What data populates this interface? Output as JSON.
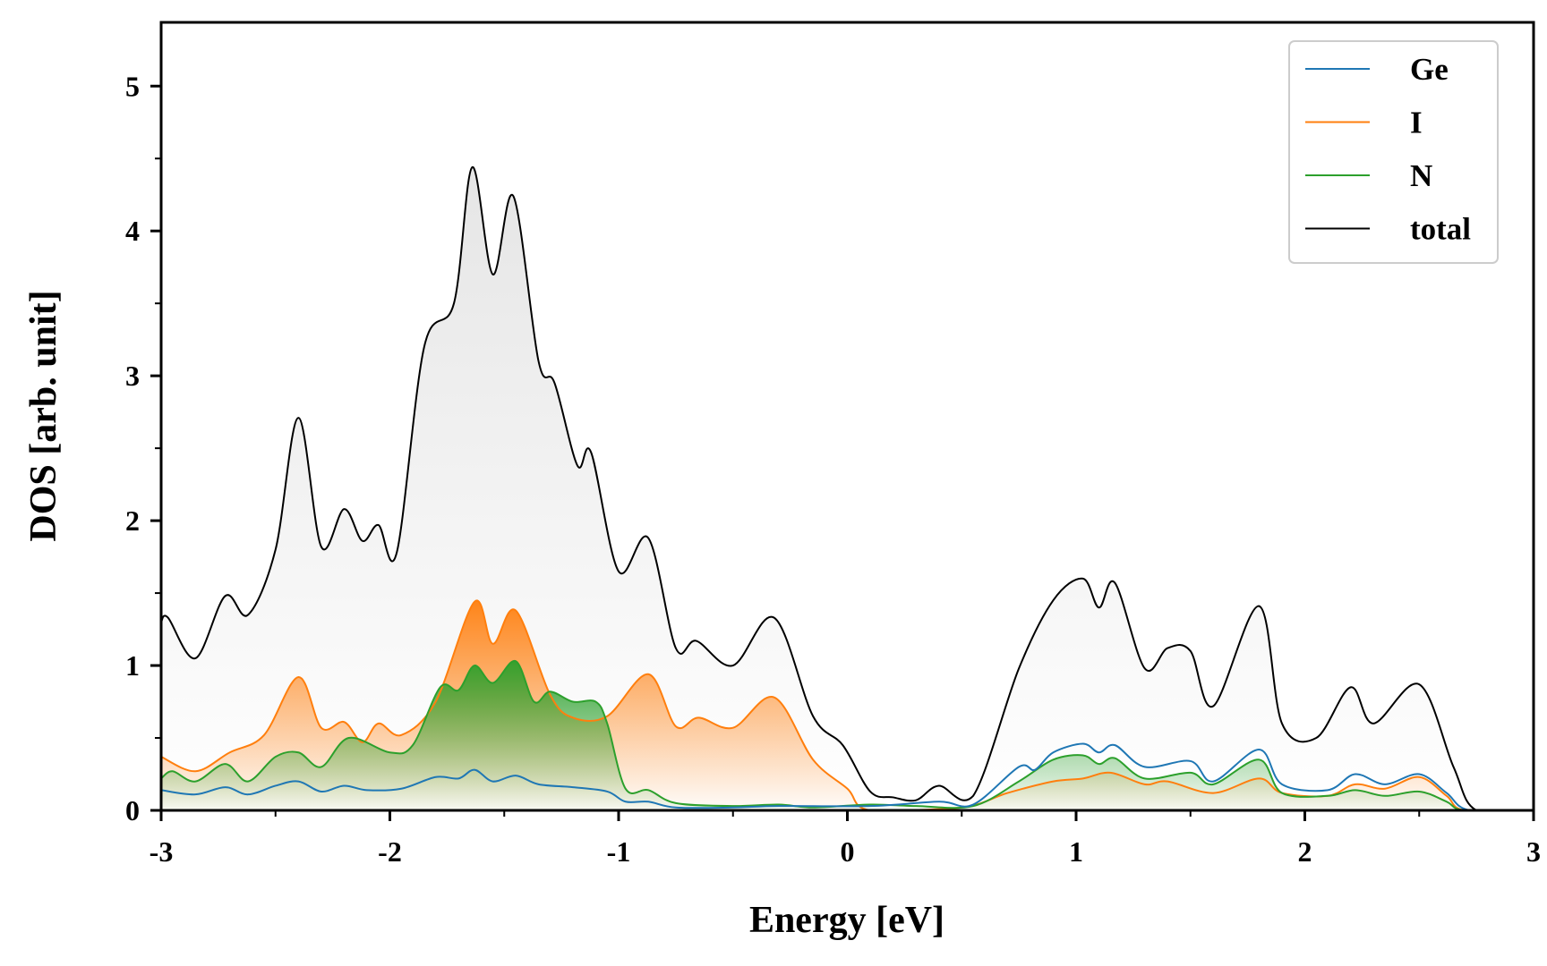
{
  "chart_data": {
    "type": "area",
    "title": "",
    "xlabel": "Energy [eV]",
    "ylabel": "DOS [arb. unit]",
    "xlim": [
      -3,
      3
    ],
    "ylim": [
      0,
      5.44
    ],
    "x_ticks": [
      "-3",
      "-2",
      "-1",
      "0",
      "1",
      "2",
      "3"
    ],
    "x_tick_values": [
      -3,
      -2,
      -1,
      0,
      1,
      2,
      3
    ],
    "y_ticks": [
      "0",
      "1",
      "2",
      "3",
      "4",
      "5"
    ],
    "y_tick_values": [
      0,
      1,
      2,
      3,
      4,
      5
    ],
    "grid": false,
    "legend_position": "top-right",
    "series": [
      {
        "name": "Ge",
        "color": "#1f77b4",
        "fill": false,
        "x": [
          -3,
          -2.85,
          -2.72,
          -2.62,
          -2.5,
          -2.4,
          -2.3,
          -2.2,
          -2.1,
          -1.95,
          -1.8,
          -1.7,
          -1.63,
          -1.55,
          -1.45,
          -1.35,
          -1.2,
          -1.05,
          -0.97,
          -0.87,
          -0.75,
          -0.5,
          -0.3,
          0.1,
          0.4,
          0.55,
          0.75,
          0.82,
          0.9,
          1.03,
          1.1,
          1.17,
          1.3,
          1.5,
          1.6,
          1.8,
          1.9,
          2.1,
          2.22,
          2.35,
          2.5,
          2.62,
          2.72,
          3
        ],
        "y": [
          0.14,
          0.11,
          0.16,
          0.11,
          0.17,
          0.2,
          0.13,
          0.17,
          0.14,
          0.15,
          0.23,
          0.22,
          0.28,
          0.2,
          0.24,
          0.18,
          0.16,
          0.13,
          0.06,
          0.06,
          0.02,
          0.02,
          0.03,
          0.03,
          0.06,
          0.04,
          0.3,
          0.28,
          0.4,
          0.46,
          0.4,
          0.45,
          0.3,
          0.34,
          0.2,
          0.42,
          0.18,
          0.14,
          0.25,
          0.18,
          0.25,
          0.12,
          0,
          0
        ]
      },
      {
        "name": "I",
        "color": "#ff7f0e",
        "fill": true,
        "x": [
          -3,
          -2.85,
          -2.7,
          -2.55,
          -2.4,
          -2.3,
          -2.2,
          -2.12,
          -2.05,
          -1.95,
          -1.8,
          -1.63,
          -1.55,
          -1.45,
          -1.3,
          -1.2,
          -1.05,
          -0.87,
          -0.75,
          -0.65,
          -0.5,
          -0.32,
          -0.15,
          0,
          0.1,
          0.5,
          0.7,
          0.9,
          1.03,
          1.15,
          1.3,
          1.4,
          1.6,
          1.8,
          1.9,
          2.1,
          2.22,
          2.35,
          2.5,
          2.62,
          2.7,
          3
        ],
        "y": [
          0.37,
          0.27,
          0.4,
          0.52,
          0.92,
          0.57,
          0.61,
          0.47,
          0.6,
          0.52,
          0.75,
          1.44,
          1.15,
          1.38,
          0.8,
          0.64,
          0.65,
          0.94,
          0.58,
          0.64,
          0.57,
          0.78,
          0.35,
          0.15,
          0,
          0.02,
          0.12,
          0.2,
          0.22,
          0.26,
          0.18,
          0.2,
          0.12,
          0.22,
          0.12,
          0.1,
          0.18,
          0.15,
          0.23,
          0.1,
          0,
          0
        ]
      },
      {
        "name": "N",
        "color": "#2ca02c",
        "fill": true,
        "x": [
          -3,
          -2.95,
          -2.85,
          -2.72,
          -2.62,
          -2.5,
          -2.4,
          -2.3,
          -2.18,
          -2.0,
          -1.9,
          -1.78,
          -1.7,
          -1.63,
          -1.55,
          -1.45,
          -1.37,
          -1.3,
          -1.2,
          -1.1,
          -1.05,
          -0.97,
          -0.87,
          -0.75,
          -0.5,
          -0.3,
          -0.15,
          0.1,
          0.3,
          0.55,
          0.75,
          0.9,
          1.03,
          1.1,
          1.17,
          1.3,
          1.5,
          1.6,
          1.8,
          1.9,
          2.1,
          2.22,
          2.35,
          2.5,
          2.62,
          2.7,
          3
        ],
        "y": [
          0.22,
          0.27,
          0.2,
          0.32,
          0.2,
          0.37,
          0.4,
          0.3,
          0.5,
          0.4,
          0.45,
          0.85,
          0.83,
          1.0,
          0.88,
          1.03,
          0.75,
          0.82,
          0.75,
          0.75,
          0.6,
          0.15,
          0.14,
          0.05,
          0.03,
          0.04,
          0.02,
          0.04,
          0.03,
          0.03,
          0.2,
          0.35,
          0.38,
          0.32,
          0.36,
          0.22,
          0.26,
          0.18,
          0.35,
          0.12,
          0.1,
          0.14,
          0.1,
          0.13,
          0.06,
          0,
          0
        ]
      },
      {
        "name": "total",
        "color": "#000000",
        "fill": true,
        "x": [
          -3,
          -2.97,
          -2.85,
          -2.72,
          -2.62,
          -2.5,
          -2.4,
          -2.3,
          -2.2,
          -2.12,
          -2.05,
          -1.97,
          -1.85,
          -1.72,
          -1.64,
          -1.55,
          -1.46,
          -1.35,
          -1.28,
          -1.18,
          -1.12,
          -1.0,
          -0.87,
          -0.75,
          -0.66,
          -0.5,
          -0.32,
          -0.15,
          -0.02,
          0.1,
          0.2,
          0.3,
          0.4,
          0.55,
          0.75,
          0.9,
          1.03,
          1.1,
          1.17,
          1.3,
          1.4,
          1.5,
          1.6,
          1.8,
          1.9,
          2.05,
          2.2,
          2.3,
          2.5,
          2.65,
          2.75,
          3
        ],
        "y": [
          1.3,
          1.33,
          1.05,
          1.48,
          1.35,
          1.8,
          2.71,
          1.82,
          2.08,
          1.86,
          1.97,
          1.78,
          3.2,
          3.5,
          4.44,
          3.7,
          4.24,
          3.1,
          2.95,
          2.38,
          2.47,
          1.65,
          1.88,
          1.12,
          1.17,
          1.0,
          1.33,
          0.65,
          0.45,
          0.13,
          0.09,
          0.07,
          0.17,
          0.1,
          0.98,
          1.45,
          1.6,
          1.4,
          1.57,
          0.98,
          1.12,
          1.1,
          0.72,
          1.41,
          0.6,
          0.5,
          0.85,
          0.6,
          0.87,
          0.3,
          0,
          0
        ]
      }
    ]
  }
}
